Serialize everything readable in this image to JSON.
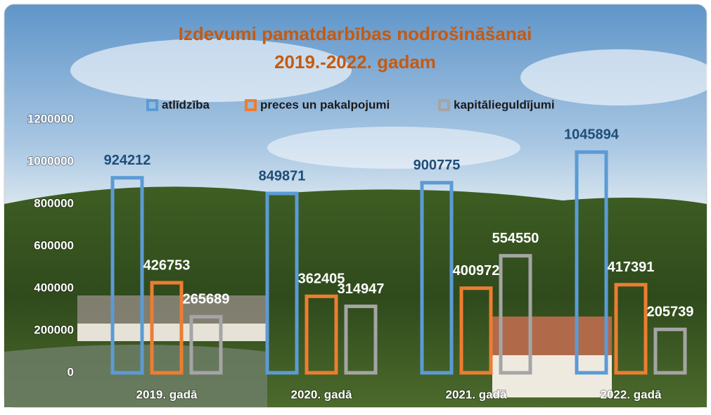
{
  "chart_data": {
    "type": "bar",
    "title": [
      "Izdevumi pamatdarbības nodrošināšanai",
      "2019.-2022. gadam"
    ],
    "categories": [
      "2019. gadā",
      "2020. gadā",
      "2021. gadā",
      "2022. gadā"
    ],
    "series": [
      {
        "name": "atlīdzība",
        "color": "#5b9bd5",
        "label_color": "#1f4e79",
        "values": [
          924212,
          849871,
          900775,
          1045894
        ]
      },
      {
        "name": "preces un pakalpojumi",
        "color": "#ed7d31",
        "label_color": "#ffffff",
        "values": [
          426753,
          362405,
          400972,
          417391
        ]
      },
      {
        "name": "kapitālieguldījumi",
        "color": "#a5a5a5",
        "label_color": "#ffffff",
        "values": [
          265689,
          314947,
          554550,
          205739
        ]
      }
    ],
    "ylim": [
      0,
      1200000
    ],
    "yticks": [
      0,
      200000,
      400000,
      600000,
      800000,
      1000000,
      1200000
    ],
    "grid": false,
    "legend": "top",
    "bar_style": "outline"
  }
}
